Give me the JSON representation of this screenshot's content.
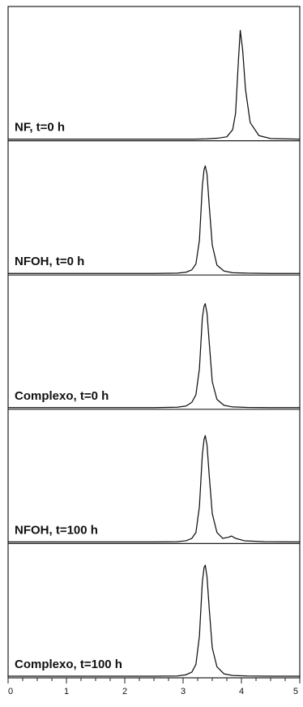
{
  "chart_data": {
    "type": "line",
    "title": "",
    "xlabel": "",
    "ylabel": "",
    "xlim": [
      0,
      5
    ],
    "x_ticks": [
      "0",
      "1",
      "2",
      "3",
      "4",
      "5"
    ],
    "grid": false,
    "legend": "none",
    "series": [
      {
        "label": "NF, t=0 h",
        "peak_x": 3.98,
        "peak_height": 0.92,
        "x": [
          0,
          0.5,
          1,
          1.5,
          2,
          2.5,
          3,
          3.2,
          3.4,
          3.6,
          3.75,
          3.85,
          3.9,
          3.95,
          3.98,
          4.02,
          4.07,
          4.15,
          4.3,
          4.5,
          4.75,
          5
        ],
        "y": [
          0,
          0,
          0,
          0,
          0,
          0,
          0,
          0,
          0.002,
          0.008,
          0.02,
          0.08,
          0.22,
          0.68,
          0.92,
          0.76,
          0.42,
          0.14,
          0.03,
          0.005,
          0.002,
          0
        ]
      },
      {
        "label": "NFOH, t=0 h",
        "peak_x": 3.38,
        "peak_height": 0.91,
        "x": [
          0,
          0.5,
          1,
          1.5,
          2,
          2.5,
          2.9,
          3.05,
          3.15,
          3.22,
          3.28,
          3.33,
          3.36,
          3.38,
          3.41,
          3.45,
          3.5,
          3.58,
          3.7,
          3.85,
          4.1,
          4.5,
          5
        ],
        "y": [
          0,
          0,
          0,
          0,
          0,
          0,
          0.002,
          0.01,
          0.03,
          0.08,
          0.28,
          0.74,
          0.88,
          0.91,
          0.84,
          0.56,
          0.24,
          0.07,
          0.02,
          0.006,
          0.002,
          0,
          0
        ]
      },
      {
        "label": "Complexo, t=0 h",
        "peak_x": 3.38,
        "peak_height": 0.88,
        "x": [
          0,
          0.5,
          1,
          1.5,
          2,
          2.5,
          2.9,
          3.05,
          3.15,
          3.22,
          3.28,
          3.33,
          3.36,
          3.38,
          3.41,
          3.45,
          3.5,
          3.58,
          3.7,
          3.85,
          4.1,
          4.5,
          5
        ],
        "y": [
          0,
          0,
          0,
          0,
          0,
          0,
          0.004,
          0.014,
          0.045,
          0.11,
          0.33,
          0.76,
          0.86,
          0.88,
          0.8,
          0.54,
          0.22,
          0.07,
          0.02,
          0.006,
          0.002,
          0,
          0
        ]
      },
      {
        "label": "NFOH, t=100 h",
        "peak_x": 3.38,
        "peak_height": 0.9,
        "x": [
          0,
          0.5,
          1,
          1.5,
          2,
          2.5,
          2.9,
          3.05,
          3.15,
          3.22,
          3.28,
          3.33,
          3.36,
          3.38,
          3.41,
          3.45,
          3.5,
          3.58,
          3.68,
          3.78,
          3.83,
          3.9,
          4.05,
          4.4,
          5
        ],
        "y": [
          0,
          0,
          0,
          0,
          0,
          0,
          0.002,
          0.01,
          0.03,
          0.08,
          0.3,
          0.74,
          0.87,
          0.9,
          0.82,
          0.55,
          0.24,
          0.08,
          0.03,
          0.04,
          0.05,
          0.03,
          0.01,
          0.002,
          0
        ]
      },
      {
        "label": "Complexo, t=100 h",
        "peak_x": 3.38,
        "peak_height": 0.94,
        "x": [
          0,
          0.5,
          1,
          1.5,
          2,
          2.5,
          2.9,
          3.05,
          3.15,
          3.22,
          3.28,
          3.33,
          3.36,
          3.38,
          3.41,
          3.45,
          3.5,
          3.58,
          3.7,
          3.85,
          4.1,
          4.5,
          5
        ],
        "y": [
          0,
          0,
          0,
          0,
          0,
          0,
          0.002,
          0.012,
          0.035,
          0.1,
          0.34,
          0.8,
          0.92,
          0.94,
          0.84,
          0.56,
          0.24,
          0.08,
          0.02,
          0.006,
          0.002,
          0,
          0
        ]
      }
    ]
  }
}
